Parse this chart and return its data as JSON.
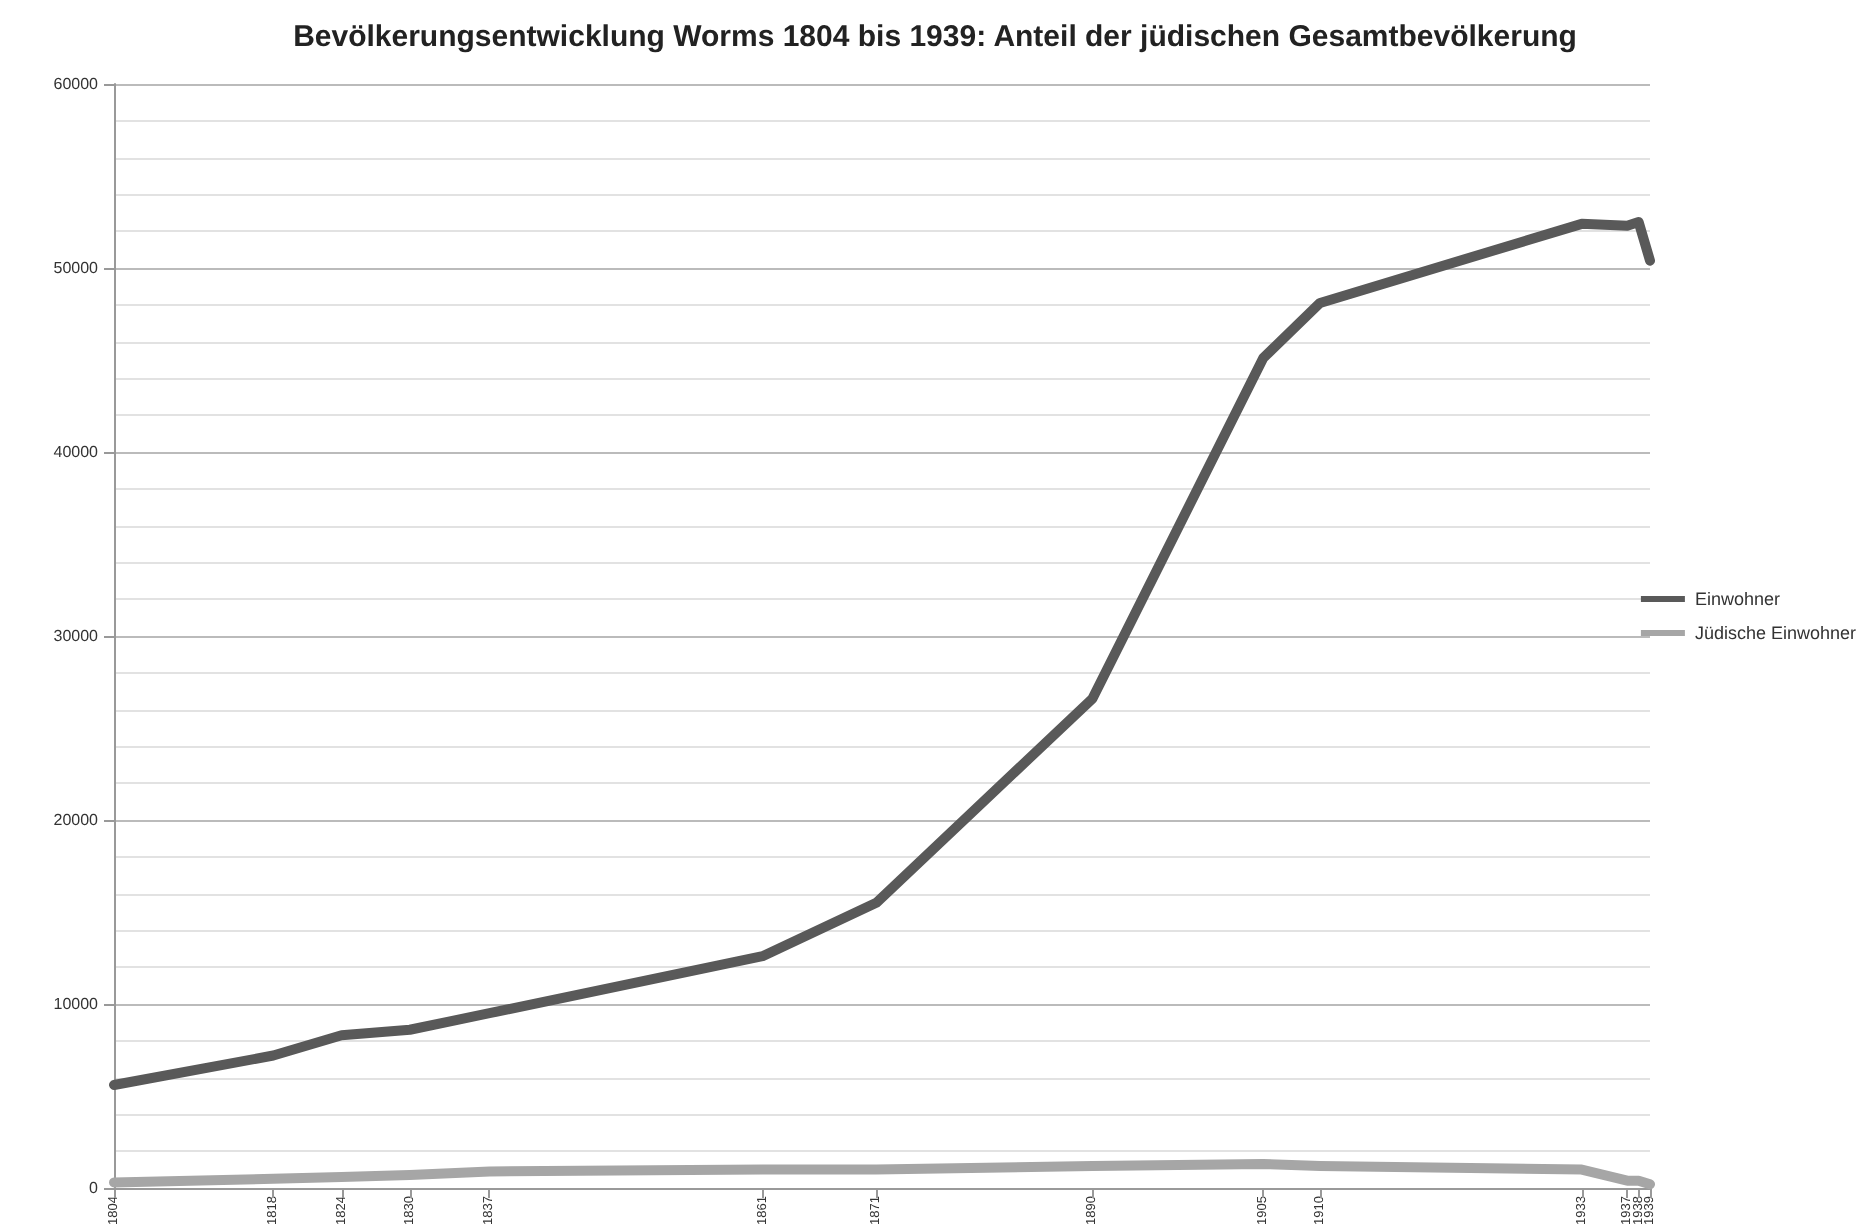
{
  "chart_data": {
    "type": "line",
    "title": "Bevölkerungsentwicklung Worms 1804 bis 1939: Anteil der jüdischen Gesamtbevölkerung",
    "x": [
      1804,
      1818,
      1824,
      1830,
      1837,
      1861,
      1871,
      1890,
      1905,
      1910,
      1933,
      1937,
      1938,
      1939
    ],
    "series": [
      {
        "name": "Einwohner",
        "color": "#595959",
        "values": [
          5600,
          7200,
          8300,
          8600,
          9500,
          12600,
          15500,
          26600,
          45100,
          48100,
          52400,
          52300,
          52500,
          50400
        ]
      },
      {
        "name": "Jüdische Einwohner",
        "color": "#a6a6a6",
        "values": [
          300,
          500,
          600,
          700,
          900,
          1000,
          1000,
          1200,
          1300,
          1200,
          1000,
          400,
          400,
          200
        ]
      }
    ],
    "xlim": [
      1804,
      1939
    ],
    "xticks": [
      1804,
      1818,
      1824,
      1830,
      1837,
      1861,
      1871,
      1890,
      1905,
      1910,
      1933,
      1937,
      1938,
      1939
    ],
    "ylim": [
      0,
      60000
    ],
    "yticks": [
      0,
      10000,
      20000,
      30000,
      40000,
      50000,
      60000
    ],
    "grid": "y",
    "legend": "right",
    "marker": "none",
    "line_style": "solid"
  }
}
